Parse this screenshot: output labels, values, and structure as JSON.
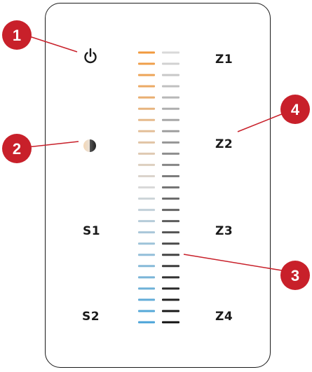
{
  "controls": {
    "power_icon": "power-icon",
    "dim_icon": "color-temperature-icon",
    "scene_1": "S1",
    "scene_2": "S2",
    "zone_1": "Z1",
    "zone_2": "Z2",
    "zone_3": "Z3",
    "zone_4": "Z4"
  },
  "callouts": [
    "1",
    "2",
    "3",
    "4"
  ],
  "colors": {
    "warm": "#f19a3e",
    "cool": "#4aa3d8",
    "dark": "#111111",
    "light": "#d9d9d9",
    "callout": "#c8202a"
  },
  "bar_count": 25
}
